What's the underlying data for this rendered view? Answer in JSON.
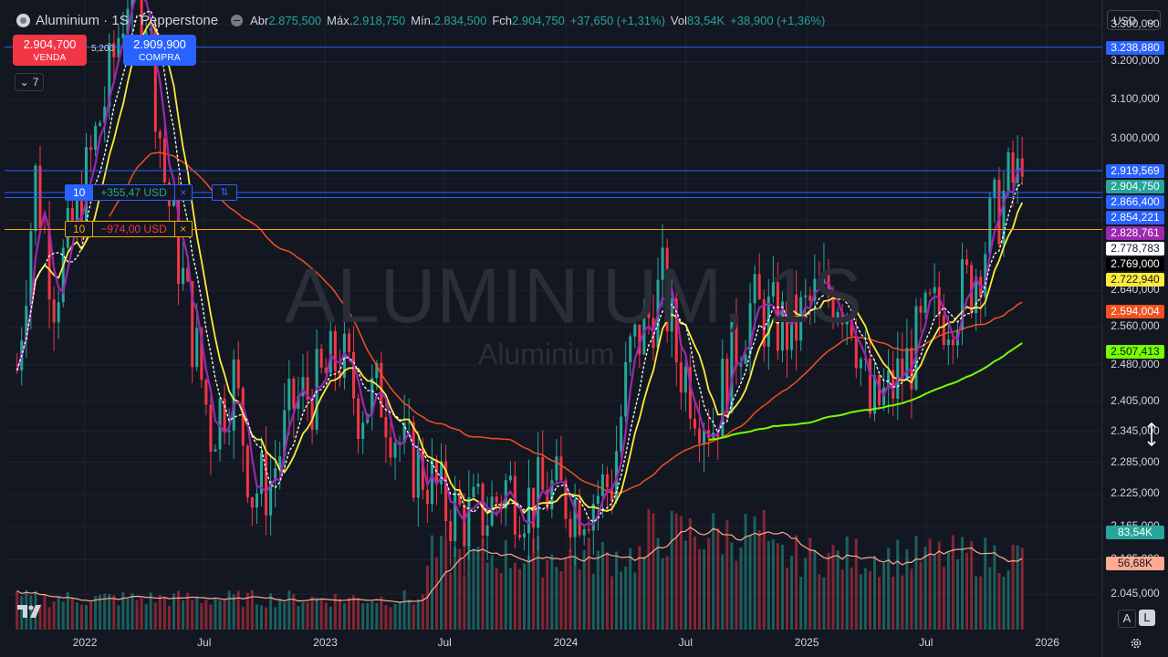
{
  "header": {
    "symbol": "Aluminium · 1S · Pepperstone",
    "open_label": "Abr",
    "open": "2.875,500",
    "high_label": "Máx.",
    "high": "2.918,750",
    "low_label": "Mín.",
    "low": "2.834,500",
    "close_label": "Fch",
    "close": "2.904,750",
    "change": "+37,650 (+1,31%)",
    "vol_label": "Vol",
    "vol": "83,54K",
    "vol_change": "+38,900 (+1,36%)"
  },
  "trade": {
    "sell_price": "2.904,700",
    "sell_label": "VENDA",
    "spread": "5,200",
    "buy_price": "2.909,900",
    "buy_label": "COMPRA"
  },
  "indicators_collapsed": "7",
  "currency": "USD",
  "watermark": {
    "symbol": "ALUMINIUM, 1S",
    "name": "Aluminium"
  },
  "positions": [
    {
      "qty": "10",
      "pnl": "+355,47 USD",
      "close": "×",
      "flip": "⇅",
      "price": 2866.4,
      "color": "#2962ff"
    },
    {
      "qty": "10",
      "pnl": "−974,00 USD",
      "close": "×",
      "price": 2778.783,
      "color": "#f7a600"
    }
  ],
  "price_labels": [
    {
      "text": "3.238,880",
      "price": 3238.88,
      "bg": "#2962ff",
      "fg": "#ffffff"
    },
    {
      "text": "2.919,569",
      "price": 2919.569,
      "bg": "#2962ff",
      "fg": "#ffffff"
    },
    {
      "text": "2.904,750",
      "price": 2904.75,
      "bg": "#26a69a",
      "fg": "#ffffff"
    },
    {
      "text": "2.866,400",
      "price": 2866.4,
      "bg": "#2962ff",
      "fg": "#ffffff"
    },
    {
      "text": "2.854,221",
      "price": 2854.221,
      "bg": "#2962ff",
      "fg": "#ffffff"
    },
    {
      "text": "2.828,761",
      "price": 2828.761,
      "bg": "#9c27b0",
      "fg": "#ffffff"
    },
    {
      "text": "2.778,783",
      "price": 2778.783,
      "bg": "#ffffff",
      "fg": "#131722"
    },
    {
      "text": "2.769,000",
      "price": 2769.0,
      "bg": "#000000",
      "fg": "#ffffff"
    },
    {
      "text": "2.722,940",
      "price": 2722.94,
      "bg": "#ffeb3b",
      "fg": "#131722"
    },
    {
      "text": "2.594,004",
      "price": 2594.004,
      "bg": "#f0511f",
      "fg": "#ffffff"
    },
    {
      "text": "2.507,413",
      "price": 2507.413,
      "bg": "#76ff03",
      "fg": "#131722"
    },
    {
      "text": "83,54K",
      "price": null,
      "bg": "#26a69a",
      "fg": "#ffffff"
    },
    {
      "text": "56,68K",
      "price": null,
      "bg": "#ffab91",
      "fg": "#131722"
    }
  ],
  "price_ticks": [
    "3.300,000",
    "3.200,000",
    "3.100,000",
    "3.000,000",
    "2.640,000",
    "2.560,000",
    "2.480,000",
    "2.405,000",
    "2.345,000",
    "2.285,000",
    "2.225,000",
    "2.165,000",
    "2.105,000",
    "2.045,000"
  ],
  "time_labels": [
    "2022",
    "Jul",
    "2023",
    "Jul",
    "2024",
    "Jul",
    "2025",
    "Jul",
    "2026"
  ],
  "buttons": {
    "auto": "A",
    "log": "L"
  },
  "chart_data": {
    "type": "candlestick",
    "timeframe": "1W",
    "y_range": [
      1985,
      3370
    ],
    "x_range": [
      "2021-09",
      "2026-02"
    ],
    "series": [
      {
        "name": "price",
        "color_up": "#26a69a",
        "color_down": "#f23645",
        "anchors": [
          [
            "2021-09-20",
            2470
          ],
          [
            "2021-10-18",
            2900
          ],
          [
            "2021-11-15",
            2640
          ],
          [
            "2021-12-20",
            2800
          ],
          [
            "2022-02-07",
            3150
          ],
          [
            "2022-03-07",
            3400
          ],
          [
            "2022-04-04",
            3350
          ],
          [
            "2022-05-02",
            2900
          ],
          [
            "2022-06-06",
            2600
          ],
          [
            "2022-07-11",
            2350
          ],
          [
            "2022-08-15",
            2450
          ],
          [
            "2022-09-12",
            2230
          ],
          [
            "2022-10-10",
            2250
          ],
          [
            "2022-11-14",
            2400
          ],
          [
            "2022-12-19",
            2430
          ],
          [
            "2023-01-23",
            2500
          ],
          [
            "2023-02-20",
            2400
          ],
          [
            "2023-03-27",
            2420
          ],
          [
            "2023-05-01",
            2300
          ],
          [
            "2023-06-05",
            2260
          ],
          [
            "2023-07-03",
            2200
          ],
          [
            "2023-08-07",
            2180
          ],
          [
            "2023-09-04",
            2190
          ],
          [
            "2023-10-02",
            2240
          ],
          [
            "2023-11-06",
            2210
          ],
          [
            "2023-12-11",
            2230
          ],
          [
            "2024-01-15",
            2210
          ],
          [
            "2024-02-12",
            2220
          ],
          [
            "2024-03-11",
            2250
          ],
          [
            "2024-04-08",
            2500
          ],
          [
            "2024-05-06",
            2580
          ],
          [
            "2024-05-27",
            2650
          ],
          [
            "2024-06-17",
            2500
          ],
          [
            "2024-07-15",
            2420
          ],
          [
            "2024-08-12",
            2360
          ],
          [
            "2024-09-09",
            2500
          ],
          [
            "2024-10-07",
            2600
          ],
          [
            "2024-11-04",
            2580
          ],
          [
            "2024-12-09",
            2550
          ],
          [
            "2025-01-13",
            2620
          ],
          [
            "2025-02-17",
            2640
          ],
          [
            "2025-03-10",
            2600
          ],
          [
            "2025-04-07",
            2380
          ],
          [
            "2025-05-05",
            2420
          ],
          [
            "2025-06-02",
            2480
          ],
          [
            "2025-07-07",
            2580
          ],
          [
            "2025-08-04",
            2600
          ],
          [
            "2025-09-08",
            2660
          ],
          [
            "2025-10-06",
            2780
          ],
          [
            "2025-11-03",
            2880
          ],
          [
            "2025-11-24",
            2904.75
          ]
        ]
      },
      {
        "name": "ma_white_dashed",
        "color": "#ffffff",
        "last": 2778.783
      },
      {
        "name": "ma_purple",
        "color": "#9c27b0",
        "last": 2828.761
      },
      {
        "name": "ma_yellow",
        "color": "#ffeb3b",
        "last": 2722.94
      },
      {
        "name": "ma_orange",
        "color": "#f0511f",
        "last": 2594.004
      },
      {
        "name": "ma_green",
        "color": "#76ff03",
        "last": 2507.413
      },
      {
        "name": "volume",
        "last": "83,54K",
        "ma_last": "56,68K"
      }
    ],
    "hlines": [
      {
        "price": 3238.88,
        "color": "#2962ff"
      },
      {
        "price": 2919.569,
        "color": "#2962ff"
      },
      {
        "price": 2866.4,
        "color": "#2962ff"
      },
      {
        "price": 2854.221,
        "color": "#2962ff"
      },
      {
        "price": 2778.783,
        "color": "#f7a600"
      }
    ]
  }
}
